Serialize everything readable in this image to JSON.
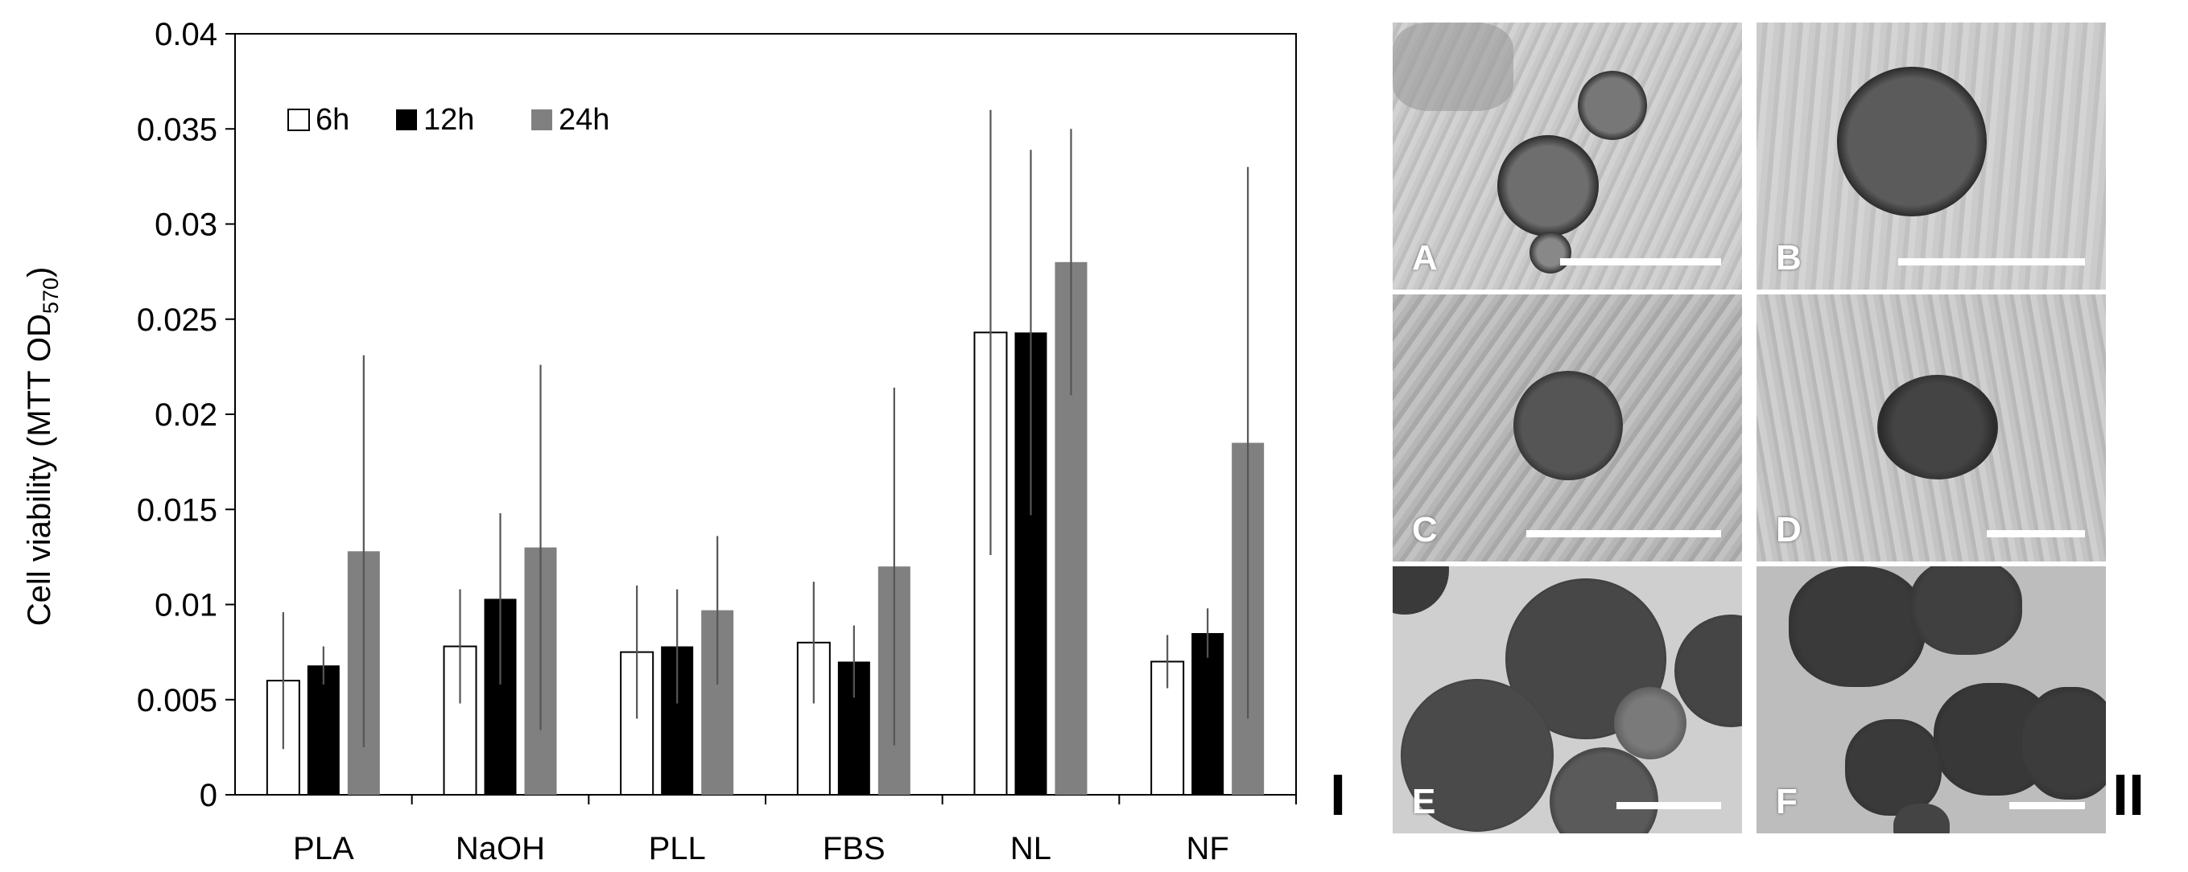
{
  "chart_data": {
    "type": "bar",
    "ylabel": "Cell viability (MTT OD",
    "ylabel_sub": "570",
    "ylabel_close": ")",
    "ylim": [
      0,
      0.04
    ],
    "yticks": [
      "0",
      "0.005",
      "0.01",
      "0.015",
      "0.02",
      "0.025",
      "0.03",
      "0.035",
      "0.04"
    ],
    "categories": [
      "PLA",
      "NaOH",
      "PLL",
      "FBS",
      "NL",
      "NF"
    ],
    "legend_position": "top-left",
    "series": [
      {
        "name": "6h",
        "color": "#ffffff",
        "values": [
          0.006,
          0.0078,
          0.0075,
          0.008,
          0.0243,
          0.007
        ],
        "errors": [
          0.0036,
          0.003,
          0.0035,
          0.0032,
          0.0117,
          0.0014
        ]
      },
      {
        "name": "12h",
        "color": "#000000",
        "values": [
          0.0068,
          0.0103,
          0.0078,
          0.007,
          0.0243,
          0.0085
        ],
        "errors": [
          0.001,
          0.0045,
          0.003,
          0.0019,
          0.0096,
          0.0013
        ]
      },
      {
        "name": "24h",
        "color": "#808080",
        "values": [
          0.0128,
          0.013,
          0.0097,
          0.012,
          0.028,
          0.0185
        ],
        "errors": [
          0.0103,
          0.0096,
          0.0039,
          0.0094,
          0.007,
          0.0145
        ]
      }
    ]
  },
  "panel_labels": {
    "left": "I",
    "right": "II"
  },
  "micrographs": [
    {
      "letter": "A"
    },
    {
      "letter": "B"
    },
    {
      "letter": "C"
    },
    {
      "letter": "D"
    },
    {
      "letter": "E"
    },
    {
      "letter": "F"
    }
  ]
}
